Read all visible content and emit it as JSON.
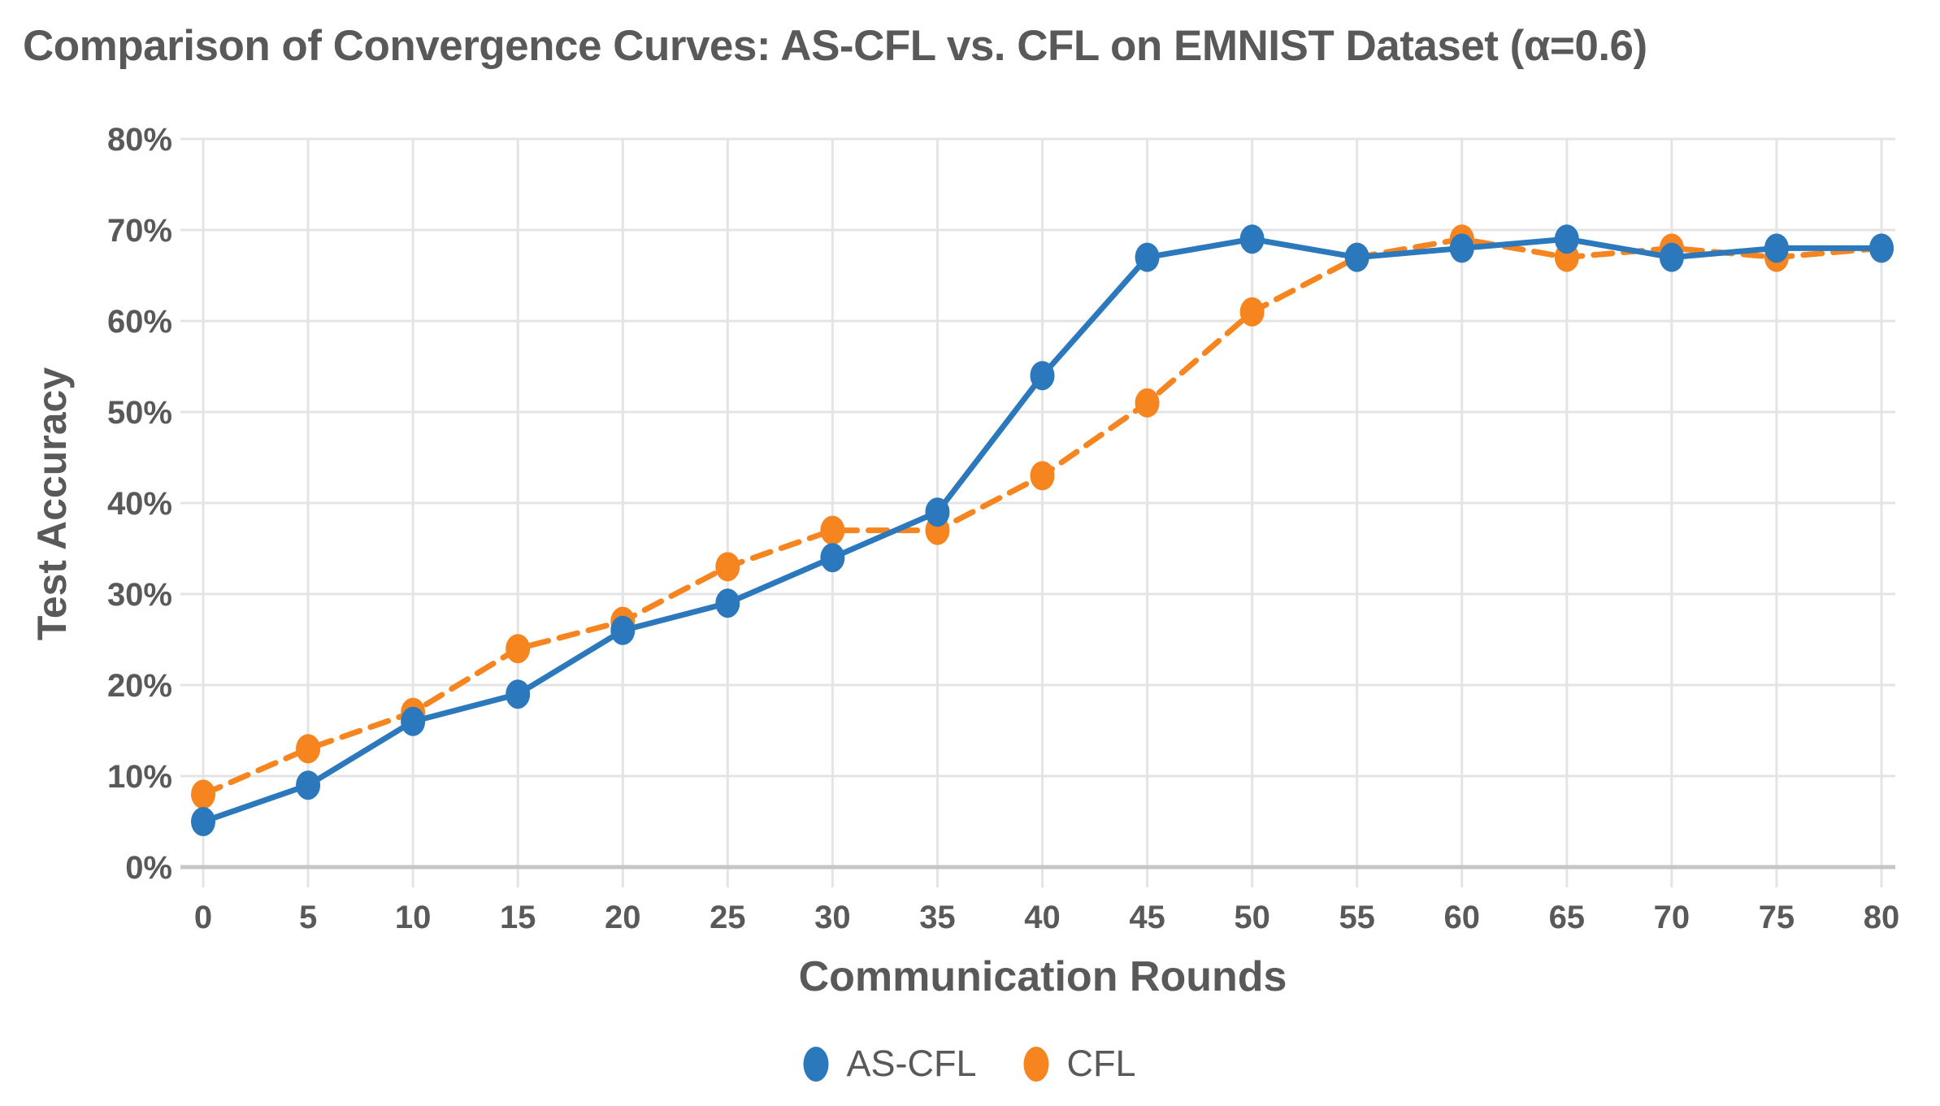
{
  "title": "Comparison of Convergence Curves: AS-CFL vs. CFL on EMNIST Dataset (α=0.6)",
  "colors": {
    "as_cfl": "#2B78BD",
    "cfl": "#F68520",
    "text": "#595959",
    "grid": "#E4E4E4",
    "axis": "#C6C6C6",
    "background": "#FFFFFF"
  },
  "chart_data": {
    "type": "line",
    "title": "Comparison of Convergence Curves: AS-CFL vs. CFL on EMNIST Dataset (α=0.6)",
    "xlabel": "Communication Rounds",
    "ylabel": "Test Accuracy",
    "x": [
      0,
      5,
      10,
      15,
      20,
      25,
      30,
      35,
      40,
      45,
      50,
      55,
      60,
      65,
      70,
      75,
      80
    ],
    "x_tick_labels": [
      "0",
      "5",
      "10",
      "15",
      "20",
      "25",
      "30",
      "35",
      "40",
      "45",
      "50",
      "55",
      "60",
      "65",
      "70",
      "75",
      "80"
    ],
    "y_ticks": [
      0,
      10,
      20,
      30,
      40,
      50,
      60,
      70,
      80
    ],
    "y_tick_labels": [
      "0%",
      "10%",
      "20%",
      "30%",
      "40%",
      "50%",
      "60%",
      "70%",
      "80%"
    ],
    "xlim": [
      0,
      80
    ],
    "ylim": [
      0,
      80
    ],
    "grid": true,
    "legend_position": "bottom",
    "series": [
      {
        "name": "AS-CFL",
        "color": "#2B78BD",
        "line_style": "solid",
        "marker": "ellipse",
        "values": [
          5,
          9,
          16,
          19,
          26,
          29,
          34,
          39,
          54,
          67,
          69,
          67,
          68,
          69,
          67,
          68,
          68
        ]
      },
      {
        "name": "CFL",
        "color": "#F68520",
        "line_style": "dashed",
        "marker": "ellipse",
        "values": [
          8,
          13,
          17,
          24,
          27,
          33,
          37,
          37,
          43,
          51,
          61,
          67,
          69,
          67,
          68,
          67,
          68
        ]
      }
    ]
  }
}
